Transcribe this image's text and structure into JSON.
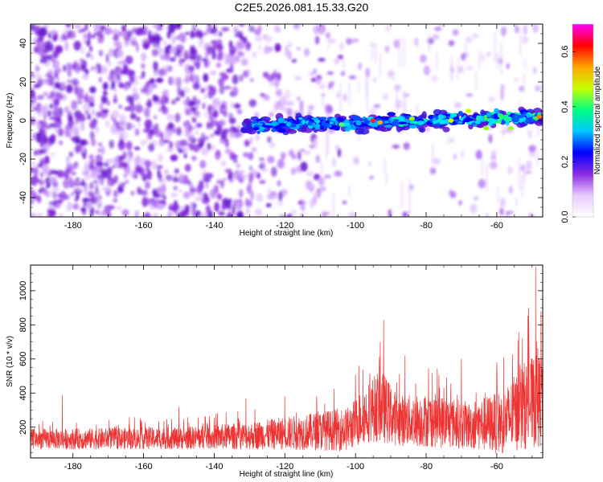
{
  "title": "C2E5.2026.081.15.33.G20",
  "chart_data": [
    {
      "type": "heatmap",
      "name": "spectrogram",
      "xlabel": "Height of straight line (km)",
      "ylabel": "Frequency (Hz)",
      "xlim": [
        -192,
        -47
      ],
      "ylim": [
        -50,
        50
      ],
      "x_ticks": [
        -180,
        -160,
        -140,
        -120,
        -100,
        -80,
        -60
      ],
      "y_ticks": [
        -40,
        -20,
        0,
        20,
        40
      ],
      "signal_band": {
        "x_start": -132,
        "x_end": -47,
        "center_start": -3,
        "center_end": 2,
        "halfwidth": 5
      },
      "noise_fade": [
        {
          "x": -192,
          "density": 0.95
        },
        {
          "x": -140,
          "density": 0.85
        },
        {
          "x": -125,
          "density": 0.45
        },
        {
          "x": -110,
          "density": 0.3
        },
        {
          "x": -100,
          "density": 0.08
        },
        {
          "x": -80,
          "density": 0.1
        },
        {
          "x": -60,
          "density": 0.12
        },
        {
          "x": -47,
          "density": 0.12
        }
      ],
      "colorbar": {
        "label": "Normalized spectral amplitude",
        "range": [
          0,
          0.7
        ],
        "ticks": [
          "0.0",
          "0.2",
          "0.4",
          "0.6"
        ],
        "tick_values": [
          0,
          0.2,
          0.4,
          0.6
        ],
        "colors": [
          "#ffffff",
          "#e9c9ff",
          "#8a2be2",
          "#0000ff",
          "#00c8ff",
          "#00ff80",
          "#c8ff00",
          "#ffa500",
          "#ff0000",
          "#ff00ff"
        ]
      }
    },
    {
      "type": "line",
      "name": "snr",
      "xlabel": "Height of straight line (km)",
      "ylabel": "SNR (10 * v/v)",
      "xlim": [
        -192,
        -47
      ],
      "ylim": [
        20,
        1150
      ],
      "x_ticks": [
        -180,
        -160,
        -140,
        -120,
        -100,
        -80,
        -60
      ],
      "y_ticks": [
        200,
        400,
        600,
        800,
        1000
      ],
      "color": "#ee3333",
      "envelope": [
        {
          "x": -192,
          "base": 130,
          "amp": 60
        },
        {
          "x": -150,
          "base": 135,
          "amp": 65
        },
        {
          "x": -130,
          "base": 150,
          "amp": 80
        },
        {
          "x": -112,
          "base": 175,
          "amp": 110
        },
        {
          "x": -102,
          "base": 190,
          "amp": 130
        },
        {
          "x": -97,
          "base": 280,
          "amp": 170
        },
        {
          "x": -93,
          "base": 330,
          "amp": 220
        },
        {
          "x": -88,
          "base": 240,
          "amp": 150
        },
        {
          "x": -78,
          "base": 240,
          "amp": 160
        },
        {
          "x": -68,
          "base": 210,
          "amp": 140
        },
        {
          "x": -58,
          "base": 230,
          "amp": 190
        },
        {
          "x": -52,
          "base": 330,
          "amp": 260
        },
        {
          "x": -47,
          "base": 360,
          "amp": 280
        }
      ],
      "peaks": [
        {
          "x": -183,
          "y": 390
        },
        {
          "x": -150,
          "y": 320
        },
        {
          "x": -131,
          "y": 370
        },
        {
          "x": -120,
          "y": 380
        },
        {
          "x": -111,
          "y": 380
        },
        {
          "x": -99,
          "y": 560
        },
        {
          "x": -93,
          "y": 700
        },
        {
          "x": -92,
          "y": 830
        },
        {
          "x": -86,
          "y": 620
        },
        {
          "x": -70,
          "y": 600
        },
        {
          "x": -60,
          "y": 580
        },
        {
          "x": -54,
          "y": 710
        },
        {
          "x": -51,
          "y": 900
        },
        {
          "x": -49,
          "y": 1140
        },
        {
          "x": -47.5,
          "y": 880
        }
      ]
    }
  ]
}
